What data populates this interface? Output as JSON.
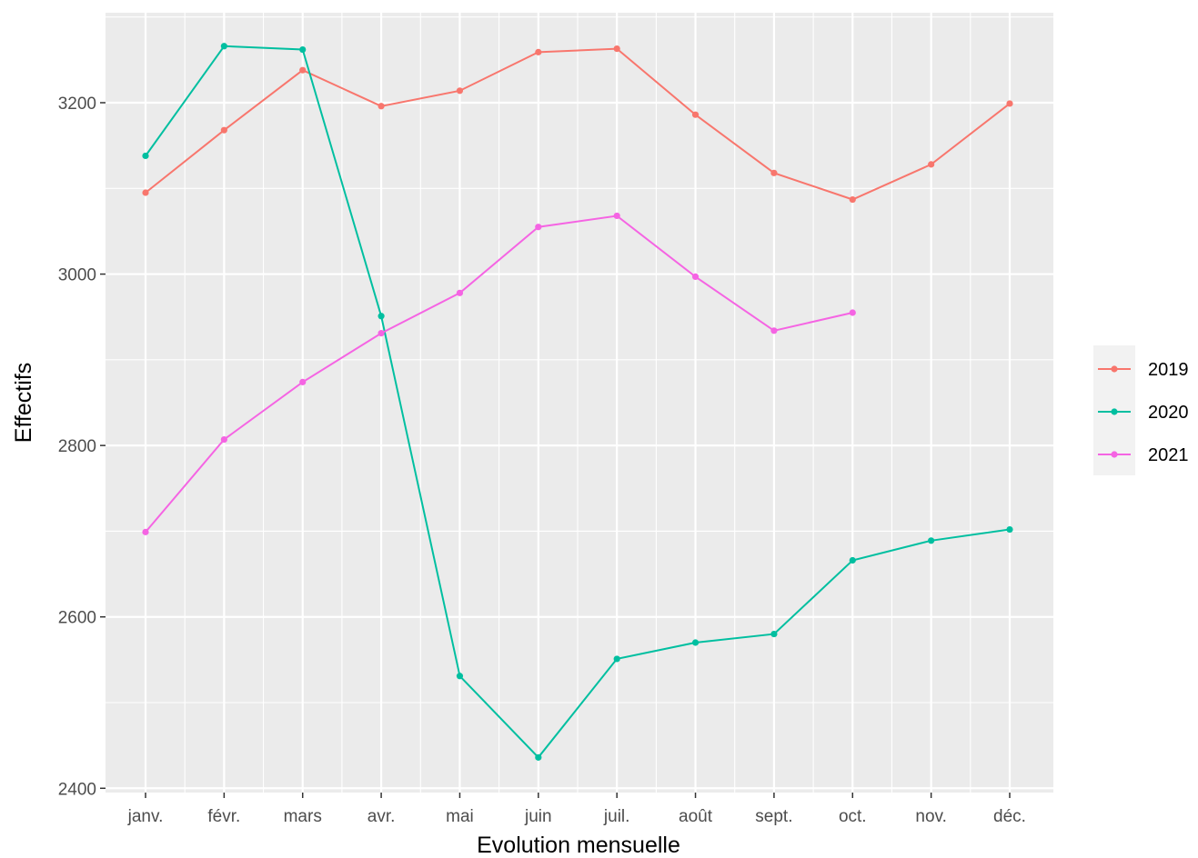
{
  "chart_data": {
    "type": "line",
    "title": "",
    "xlabel": "Evolution mensuelle",
    "ylabel": "Effectifs",
    "categories": [
      "janv.",
      "févr.",
      "mars",
      "avr.",
      "mai",
      "juin",
      "juil.",
      "août",
      "sept.",
      "oct.",
      "nov.",
      "déc."
    ],
    "ylim": [
      2395,
      3305
    ],
    "yticks": [
      2400,
      2600,
      2800,
      3000,
      3200
    ],
    "grid": true,
    "legend_position": "right",
    "series": [
      {
        "name": "2019",
        "color": "#F8766D",
        "values": [
          3095,
          3168,
          3238,
          3196,
          3214,
          3259,
          3263,
          3186,
          3118,
          3087,
          3128,
          3199
        ]
      },
      {
        "name": "2020",
        "color": "#00BFA0",
        "values": [
          3138,
          3266,
          3262,
          2951,
          2531,
          2436,
          2551,
          2570,
          2580,
          2666,
          2689,
          2702
        ]
      },
      {
        "name": "2021",
        "color": "#F564E3",
        "values": [
          2699,
          2807,
          2874,
          2931,
          2978,
          3055,
          3068,
          2997,
          2934,
          2955,
          null,
          null
        ]
      }
    ]
  }
}
